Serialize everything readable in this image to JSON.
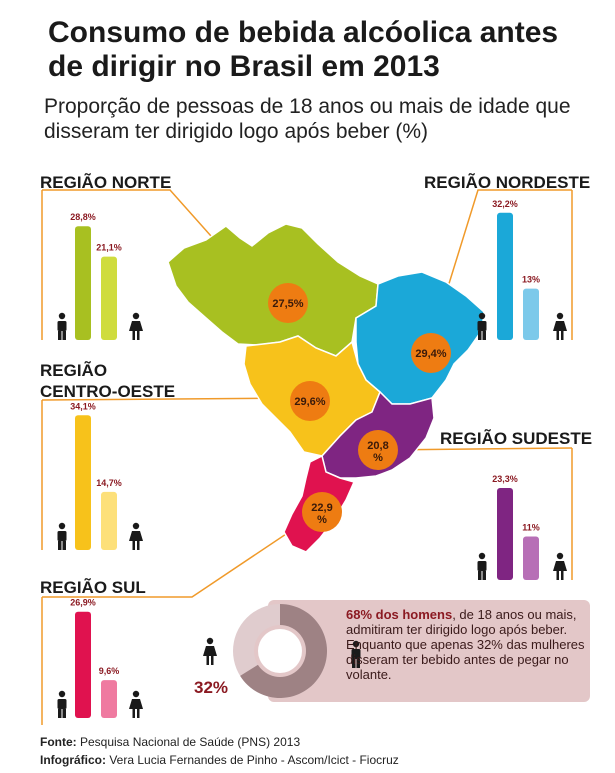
{
  "title": "Consumo de bebida alcóolica antes de dirigir no Brasil em 2013",
  "subtitle": "Proporção de pessoas de 18 anos ou mais de idade que disseram ter dirigido logo após beber (%)",
  "colors": {
    "norte": "#a8c021",
    "norte_light": "#cfdc3e",
    "nordeste": "#1ba8d8",
    "nordeste_light": "#7cc9ea",
    "centro_oeste": "#f7c21b",
    "centro_oeste_light": "#fde07a",
    "sudeste": "#7f2582",
    "sudeste_light": "#b76fb6",
    "sul": "#e0124f",
    "sul_light": "#ef7aa0",
    "badge": "#ee7c12",
    "label": "#8b1a22"
  },
  "chart_data": [
    {
      "type": "bar",
      "region": "REGIÃO NORTE",
      "categories": [
        "Homens",
        "Mulheres"
      ],
      "values": [
        28.8,
        21.1
      ],
      "value_labels": [
        "28,8%",
        "21,1%"
      ],
      "total": 27.5,
      "total_label": "27,5%"
    },
    {
      "type": "bar",
      "region": "REGIÃO NORDESTE",
      "categories": [
        "Homens",
        "Mulheres"
      ],
      "values": [
        32.2,
        13
      ],
      "value_labels": [
        "32,2%",
        "13%"
      ],
      "total": 29.4,
      "total_label": "29,4%"
    },
    {
      "type": "bar",
      "region": "REGIÃO CENTRO-OESTE",
      "categories": [
        "Homens",
        "Mulheres"
      ],
      "values": [
        34.1,
        14.7
      ],
      "value_labels": [
        "34,1%",
        "14,7%"
      ],
      "total": 29.6,
      "total_label": "29,6%"
    },
    {
      "type": "bar",
      "region": "REGIÃO SUDESTE",
      "categories": [
        "Homens",
        "Mulheres"
      ],
      "values": [
        23.3,
        11
      ],
      "value_labels": [
        "23,3%",
        "11%"
      ],
      "total": 20.8,
      "total_label": "20,8 %"
    },
    {
      "type": "bar",
      "region": "REGIÃO SUL",
      "categories": [
        "Homens",
        "Mulheres"
      ],
      "values": [
        26.9,
        9.6
      ],
      "value_labels": [
        "26,9%",
        "9,6%"
      ],
      "total": 22.9,
      "total_label": "22,9 %"
    },
    {
      "type": "pie",
      "categories": [
        "Homens",
        "Mulheres"
      ],
      "values": [
        68,
        32
      ],
      "value_labels": [
        "68%",
        "32%"
      ]
    }
  ],
  "regions": {
    "norte": "REGIÃO NORTE",
    "nordeste": "REGIÃO NORDESTE",
    "centro_oeste_line1": "REGIÃO",
    "centro_oeste_line2": "CENTRO-OESTE",
    "sudeste": "REGIÃO SUDESTE",
    "sul": "REGIÃO SUL"
  },
  "summary": {
    "highlight": "68% dos homens",
    "text": ", de 18 anos ou mais, admitiram ter dirigido logo após beber. Enquanto que apenas 32% das mulheres disseram ter bebido antes de pegar no volante.",
    "women_pct": "32%"
  },
  "footer": {
    "fonte_label": "Fonte:",
    "fonte_value": " Pesquisa Nacional de Saúde (PNS) 2013",
    "info_label": "Infográfico:",
    "info_value": " Vera Lucia Fernandes de Pinho - Ascom/Icict - Fiocruz"
  }
}
